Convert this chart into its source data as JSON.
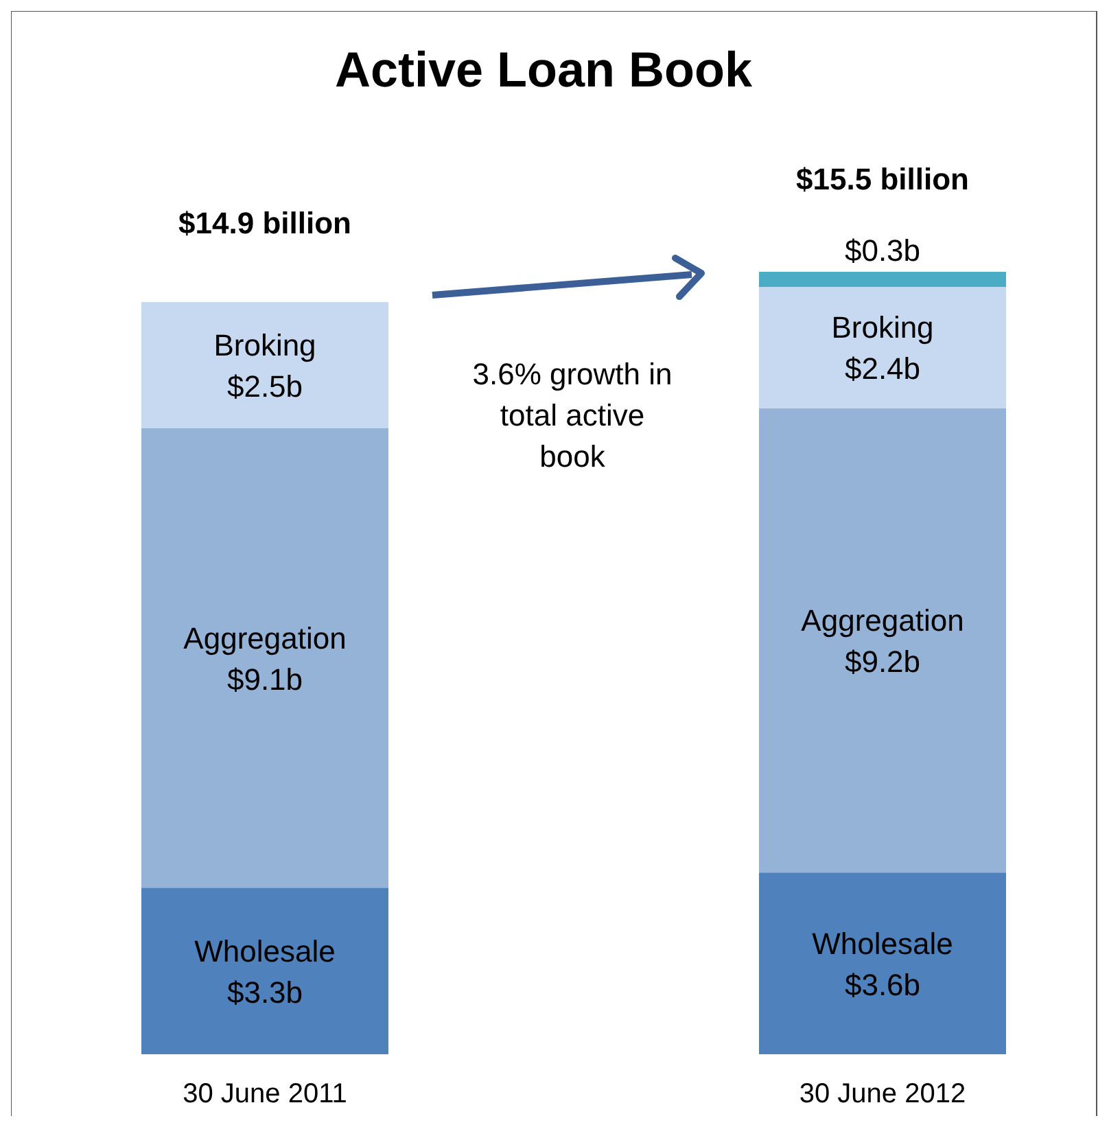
{
  "chart_data": {
    "type": "bar",
    "title": "Active Loan Book",
    "stacked": true,
    "categories": [
      "30 June 2011",
      "30 June 2012"
    ],
    "series": [
      {
        "name": "Wholesale",
        "color": "#4f81bd",
        "values": [
          3.3,
          3.6
        ],
        "value_labels": [
          "$3.3b",
          "$3.6b"
        ]
      },
      {
        "name": "Aggregation",
        "color": "#95b3d7",
        "values": [
          9.1,
          9.2
        ],
        "value_labels": [
          "$9.1b",
          "$9.2b"
        ]
      },
      {
        "name": "Broking",
        "color": "#c6d9f1",
        "values": [
          2.5,
          2.4
        ],
        "value_labels": [
          "$2.5b",
          "$2.4b"
        ]
      },
      {
        "color": "#4bacc6",
        "values": [
          null,
          0.3
        ],
        "value_labels": [
          null,
          "$0.3b"
        ]
      }
    ],
    "totals": [
      "$14.9 billion",
      "$15.5 billion"
    ],
    "annotations": [
      "3.6% growth in total active book"
    ]
  }
}
